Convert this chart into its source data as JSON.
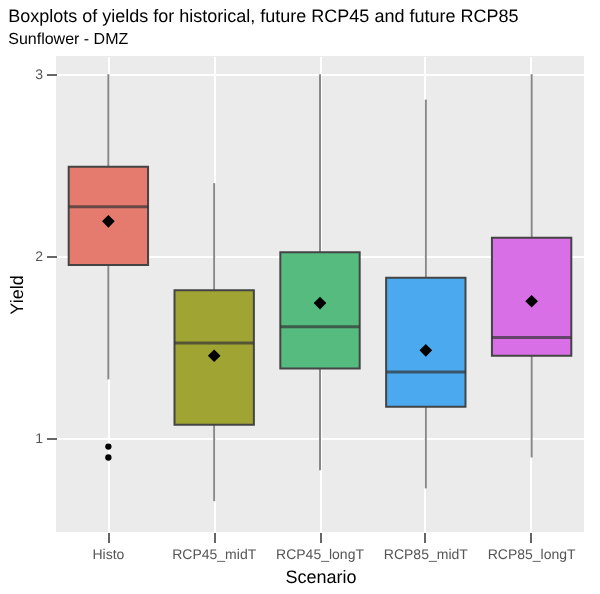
{
  "chart_data": {
    "type": "box",
    "title": "Boxplots of yields for historical, future RCP45 and future RCP85",
    "subtitle": "Sunflower - DMZ",
    "xlabel": "Scenario",
    "ylabel": "Yield",
    "categories": [
      "Histo",
      "RCP45_midT",
      "RCP45_longT",
      "RCP85_midT",
      "RCP85_longT"
    ],
    "colors": [
      "#e57b6e",
      "#a0a432",
      "#55bb7e",
      "#4aa9ef",
      "#d86fe6"
    ],
    "boxes": [
      {
        "low": 1.32,
        "q1": 1.95,
        "median": 2.27,
        "q3": 2.49,
        "high": 3.0,
        "mean": 2.19,
        "outliers": [
          0.95,
          0.89
        ]
      },
      {
        "low": 0.65,
        "q1": 1.07,
        "median": 1.52,
        "q3": 1.81,
        "high": 2.4,
        "mean": 1.45
      },
      {
        "low": 0.82,
        "q1": 1.38,
        "median": 1.61,
        "q3": 2.02,
        "high": 3.0,
        "mean": 1.74
      },
      {
        "low": 0.72,
        "q1": 1.17,
        "median": 1.36,
        "q3": 1.88,
        "high": 2.86,
        "mean": 1.48
      },
      {
        "low": 0.89,
        "q1": 1.45,
        "median": 1.55,
        "q3": 2.1,
        "high": 3.0,
        "mean": 1.75
      }
    ],
    "ylim": [
      0.48,
      3.1
    ],
    "yticks": [
      1,
      2,
      3
    ],
    "grid": true
  }
}
